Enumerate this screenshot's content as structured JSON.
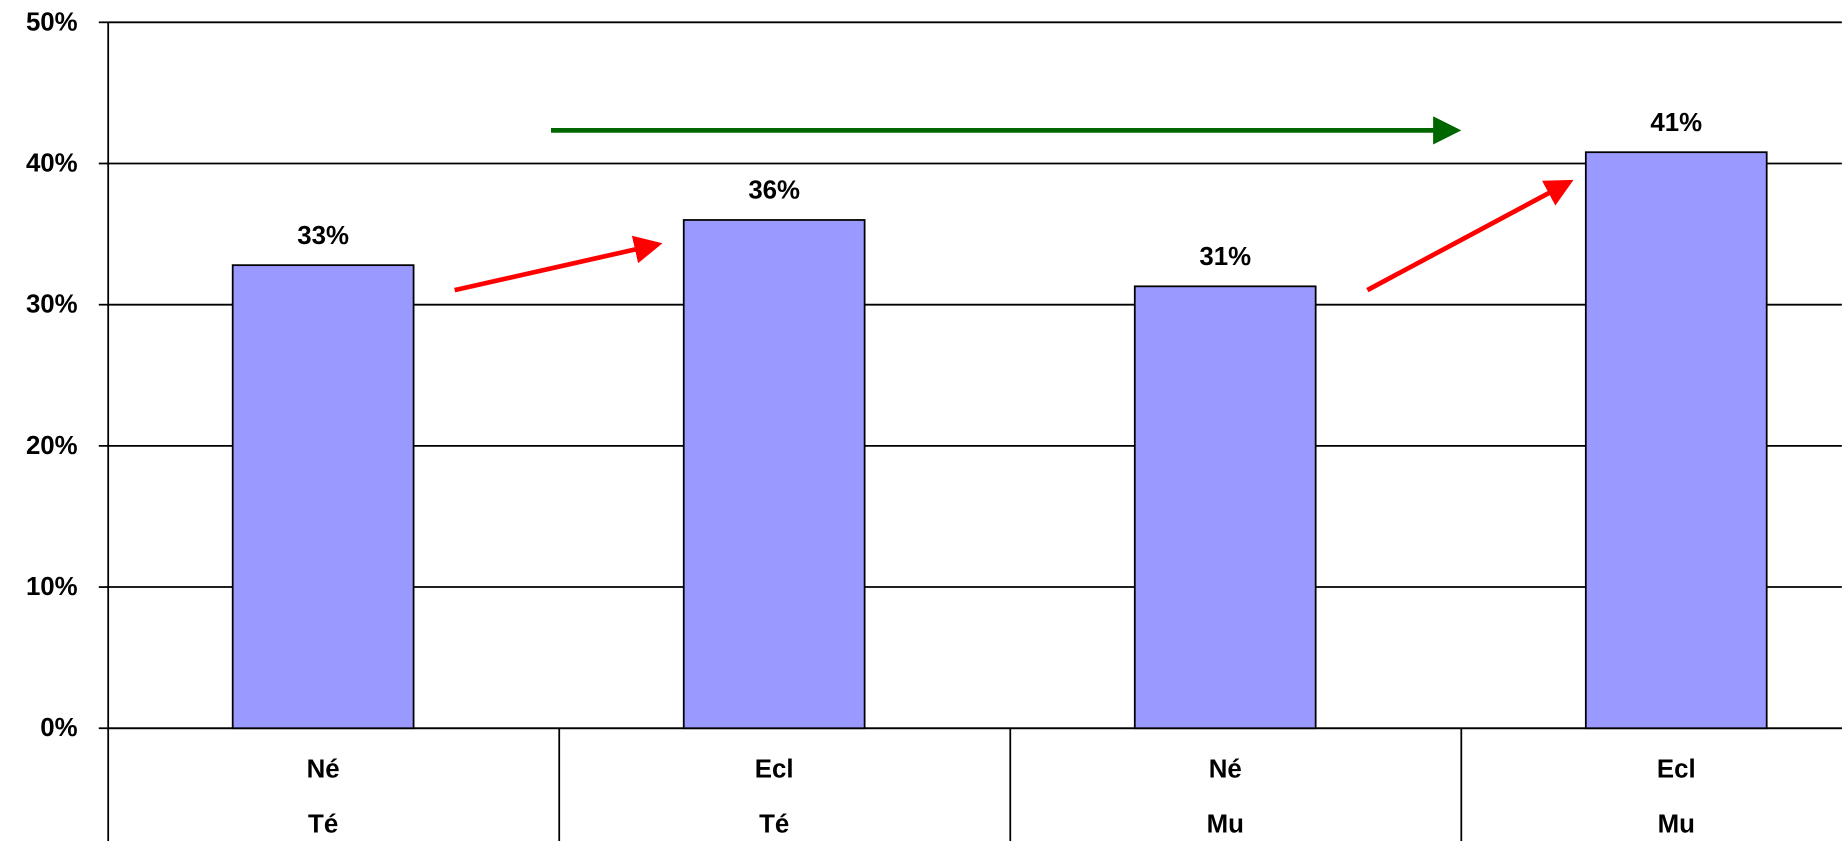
{
  "chart_data": {
    "type": "bar",
    "categories": [
      [
        "Né",
        "Té"
      ],
      [
        "Ecl",
        "Té"
      ],
      [
        "Né",
        "Mu"
      ],
      [
        "Ecl",
        "Mu"
      ]
    ],
    "values": [
      32.8,
      36,
      31.3,
      40.8
    ],
    "value_labels": [
      "33%",
      "36%",
      "31%",
      "41%"
    ],
    "color": "#9999ff",
    "ylim": [
      0,
      50
    ],
    "yticks": [
      {
        "value": 0,
        "label": "0%"
      },
      {
        "value": 10,
        "label": "10%"
      },
      {
        "value": 20,
        "label": "20%"
      },
      {
        "value": 30,
        "label": "30%"
      },
      {
        "value": 40,
        "label": "40%"
      },
      {
        "value": 50,
        "label": "50%"
      }
    ],
    "grid": true
  }
}
